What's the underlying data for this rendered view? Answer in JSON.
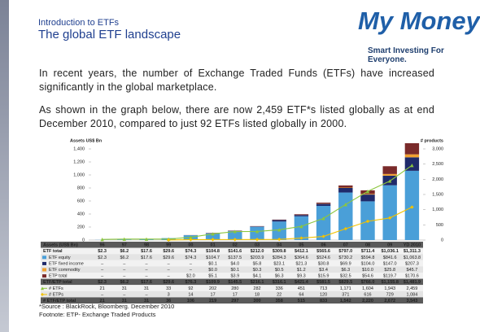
{
  "header": {
    "kicker": "Introduction to ETFs",
    "title": "The global ETF landscape"
  },
  "logo": {
    "name": "My Money",
    "tagline": "Smart Investing For Everyone."
  },
  "body": [
    "In recent years, the number of Exchange Traded Funds (ETFs) have increased significantly in the global marketplace.",
    "As shown in the graph below, there are now 2,459 ETF*s listed globally as at end December 2010, compared to just 92 ETFs listed globally in 2000."
  ],
  "chart_data": {
    "type": "bar",
    "y_label": "Assets US$ Bn",
    "y2_label": "# products",
    "categories": [
      "96",
      "97",
      "98",
      "99",
      "00",
      "01",
      "02",
      "03",
      "04",
      "05",
      "06",
      "07",
      "08",
      "09",
      "YD 2010"
    ],
    "ylim": [
      0,
      1400
    ],
    "yticks": [
      0,
      200,
      400,
      600,
      800,
      {
        "value": 1000,
        "label": "1,000"
      },
      {
        "value": 1200,
        "label": "1,200"
      },
      {
        "value": 1400,
        "label": "1,400"
      }
    ],
    "y2lim": [
      0,
      3000
    ],
    "y2ticks": [
      0,
      500,
      {
        "value": 1000,
        "label": "1,000"
      },
      {
        "value": 1500,
        "label": "1,500"
      },
      {
        "value": 2000,
        "label": "2,000"
      },
      {
        "value": 2500,
        "label": "2,500"
      },
      {
        "value": 3000,
        "label": "3,000"
      }
    ],
    "series": [
      {
        "name": "ETF equity",
        "color": "#4a9fd8",
        "values": [
          2.3,
          6.2,
          17.6,
          29.6,
          74.3,
          104.7,
          137.5,
          203.9,
          284.3,
          364.6,
          524.6,
          730.2,
          594.8,
          841.6,
          1063.8
        ],
        "value_labels": [
          "$2.3",
          "$6.2",
          "$17.6",
          "$29.6",
          "$74.3",
          "$104.7",
          "$137.5",
          "$203.9",
          "$284.3",
          "$364.6",
          "$524.6",
          "$730.2",
          "$594.8",
          "$841.6",
          "$1,063.8"
        ]
      },
      {
        "name": "ETF fixed income",
        "color": "#1f2a6b",
        "values": [
          null,
          null,
          null,
          null,
          null,
          0.1,
          4.0,
          5.8,
          23.1,
          21.3,
          30.8,
          69.9,
          104.0,
          147.0,
          207.3
        ],
        "value_labels": [
          "–",
          "–",
          "–",
          "–",
          "–",
          "$0.1",
          "$4.0",
          "$5.8",
          "$23.1",
          "$21.3",
          "$30.8",
          "$69.9",
          "$104.0",
          "$147.0",
          "$207.3"
        ]
      },
      {
        "name": "ETF commodity",
        "color": "#f0a030",
        "values": [
          null,
          null,
          null,
          null,
          null,
          0.0,
          0.1,
          0.3,
          0.5,
          1.2,
          3.4,
          6.3,
          10.0,
          25.8,
          45.7
        ],
        "value_labels": [
          "–",
          "–",
          "–",
          "–",
          "–",
          "$0.0",
          "$0.1",
          "$0.3",
          "$0.5",
          "$1.2",
          "$3.4",
          "$6.3",
          "$10.0",
          "$25.8",
          "$45.7"
        ]
      },
      {
        "name": "ETP total",
        "color": "#7a2a2a",
        "values": [
          null,
          null,
          null,
          null,
          2.0,
          5.1,
          3.9,
          4.1,
          6.3,
          9.3,
          15.9,
          32.5,
          54.6,
          119.7,
          170.6
        ],
        "value_labels": [
          "–",
          "–",
          "–",
          "–",
          "$2.0",
          "$5.1",
          "$3.9",
          "$4.1",
          "$6.3",
          "$9.3",
          "$15.9",
          "$32.5",
          "$54.6",
          "$119.7",
          "$170.6"
        ]
      },
      {
        "name": "# ETFs",
        "color": "#8cc63f",
        "axis": "y2",
        "values": [
          21,
          31,
          31,
          33,
          92,
          202,
          280,
          282,
          336,
          451,
          713,
          1171,
          1604,
          1943,
          2459
        ],
        "value_labels": [
          "21",
          "31",
          "31",
          "33",
          "92",
          "202",
          "280",
          "282",
          "336",
          "451",
          "713",
          "1,171",
          "1,604",
          "1,943",
          "2,459"
        ]
      },
      {
        "name": "# ETPs",
        "color": "#f2c200",
        "axis": "y2",
        "values": [
          null,
          null,
          null,
          3,
          14,
          17,
          17,
          18,
          22,
          64,
          120,
          371,
          616,
          729,
          1084
        ],
        "value_labels": [
          "–",
          "–",
          "–",
          "3",
          "14",
          "17",
          "17",
          "18",
          "22",
          "64",
          "120",
          "371",
          "616",
          "729",
          "1,084"
        ]
      }
    ],
    "table": {
      "header": "Assets (US$ Bn)",
      "etf_total": {
        "name": "ETF total",
        "cells": [
          "$2.3",
          "$6.2",
          "$17.6",
          "$29.6",
          "$74.3",
          "$104.8",
          "$141.6",
          "$212.0",
          "$309.8",
          "$412.1",
          "$565.6",
          "$797.0",
          "$711.4",
          "$1,036.1",
          "$1,311.3"
        ]
      },
      "etf_etp_total": {
        "name": "ETF/ETP total",
        "cells": [
          "$2.3",
          "$6.2",
          "$17.6",
          "$29.6",
          "$76.3",
          "$109.9",
          "$145.5",
          "$216.1",
          "$316.1",
          "$421.4",
          "$581.5",
          "$829.5",
          "$766.0",
          "$1,155.8",
          "$1,481.9"
        ]
      },
      "count_total": {
        "name": "# ETF/ETP total",
        "cells": [
          "21",
          "31",
          "31",
          "36",
          "106",
          "219",
          "297",
          "300",
          "358",
          "515",
          "833",
          "1,542",
          "2,220",
          "2,672",
          "3,543"
        ]
      }
    }
  },
  "notes": [
    "*Source : BlackRock, Bloomberg. December 2010",
    "Footnote: ETP- Exchange Traded Products"
  ]
}
